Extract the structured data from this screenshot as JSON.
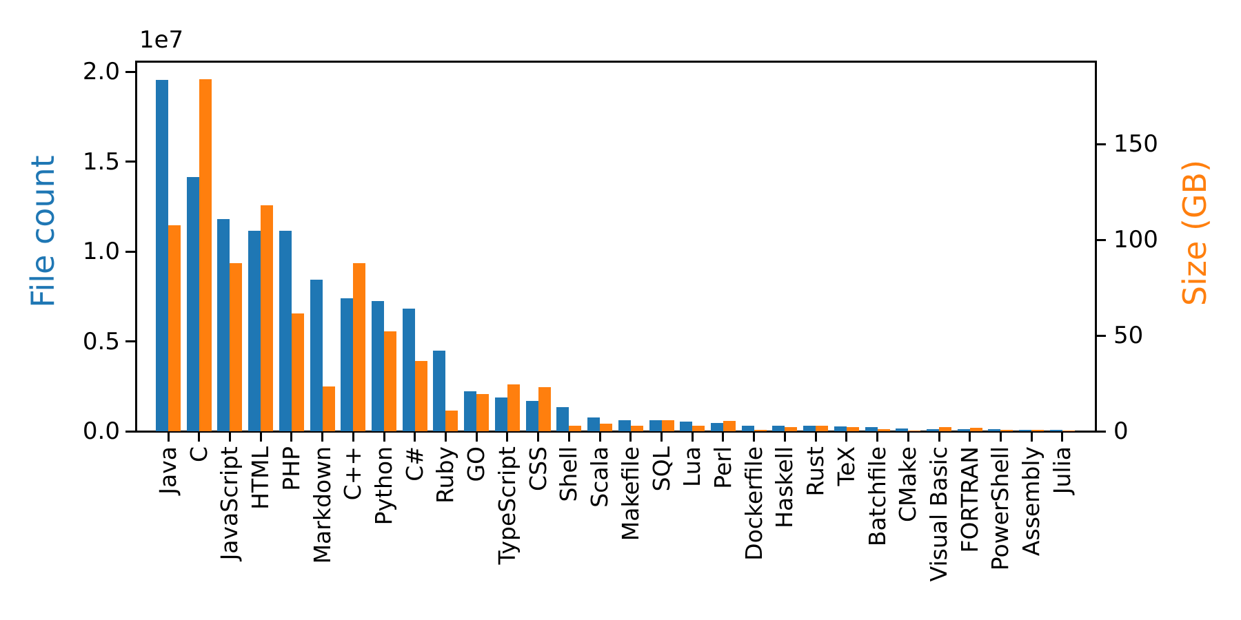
{
  "figure": {
    "background_color": "#ffffff",
    "title": ""
  },
  "chart_data": {
    "type": "bar",
    "title": "",
    "grid": false,
    "legend": "none",
    "categories": [
      "Java",
      "C",
      "JavaScript",
      "HTML",
      "PHP",
      "Markdown",
      "C++",
      "Python",
      "C#",
      "Ruby",
      "GO",
      "TypeScript",
      "CSS",
      "Shell",
      "Scala",
      "Makefile",
      "SQL",
      "Lua",
      "Perl",
      "Dockerfile",
      "Haskell",
      "Rust",
      "TeX",
      "Batchfile",
      "CMake",
      "Visual Basic",
      "FORTRAN",
      "PowerShell",
      "Assembly",
      "Julia"
    ],
    "series": [
      {
        "name": "File count",
        "axis": "left",
        "color": "#1f77b4",
        "values": [
          19540000,
          14130000,
          11810000,
          11150000,
          11150000,
          8440000,
          7380000,
          7230000,
          6810000,
          4470000,
          2230000,
          1890000,
          1670000,
          1340000,
          770000,
          610000,
          610000,
          540000,
          460000,
          300000,
          300000,
          295000,
          250000,
          240000,
          150000,
          130000,
          100000,
          120000,
          70000,
          60000
        ]
      },
      {
        "name": "Size (GB)",
        "axis": "right",
        "color": "#ff7f0e",
        "values": [
          107.7,
          183.8,
          87.8,
          118.1,
          61.4,
          23.5,
          87.7,
          52.0,
          36.8,
          10.9,
          19.3,
          24.6,
          22.9,
          3.0,
          3.9,
          2.9,
          5.6,
          2.8,
          5.3,
          0.6,
          2.3,
          2.7,
          2.2,
          0.9,
          0.5,
          2.0,
          1.7,
          0.7,
          0.8,
          0.3
        ]
      }
    ],
    "left_axis": {
      "label": "File count",
      "label_color": "#1f77b4",
      "offset_text": "1e7",
      "tick_labels": [
        "0.0",
        "0.5",
        "1.0",
        "1.5",
        "2.0"
      ],
      "tick_values": [
        0,
        5000000,
        10000000,
        15000000,
        20000000
      ],
      "ylim": [
        0,
        20540000
      ]
    },
    "right_axis": {
      "label": "Size (GB)",
      "label_color": "#ff7f0e",
      "tick_labels": [
        "0",
        "50",
        "100",
        "150"
      ],
      "tick_values": [
        0,
        50,
        100,
        150
      ],
      "ylim": [
        0,
        192.8
      ]
    }
  }
}
